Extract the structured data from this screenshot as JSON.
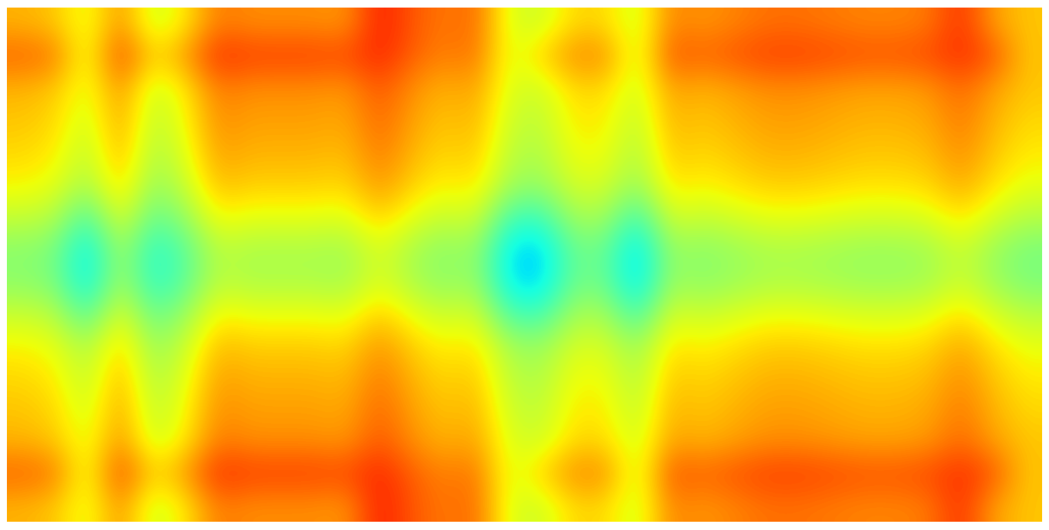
{
  "chart_data": {
    "type": "heatmap",
    "color": "jet",
    "clim": [
      0,
      1
    ],
    "tick_labels": false,
    "cells": [
      [
        0.72,
        0.7,
        0.62,
        0.76,
        0.6,
        0.66,
        0.78,
        0.76,
        0.76,
        0.76,
        0.75,
        0.88,
        0.82,
        0.78,
        0.8,
        0.62,
        0.6,
        0.68,
        0.68,
        0.6,
        0.77,
        0.75,
        0.77,
        0.79,
        0.79,
        0.78,
        0.77,
        0.77,
        0.78,
        0.86,
        0.74,
        0.7
      ],
      [
        0.8,
        0.78,
        0.62,
        0.84,
        0.68,
        0.74,
        0.86,
        0.84,
        0.84,
        0.84,
        0.83,
        0.87,
        0.81,
        0.77,
        0.79,
        0.62,
        0.68,
        0.76,
        0.76,
        0.6,
        0.82,
        0.8,
        0.82,
        0.84,
        0.84,
        0.83,
        0.82,
        0.82,
        0.83,
        0.86,
        0.82,
        0.7
      ],
      [
        0.72,
        0.7,
        0.62,
        0.76,
        0.6,
        0.66,
        0.78,
        0.76,
        0.76,
        0.76,
        0.75,
        0.82,
        0.76,
        0.72,
        0.74,
        0.62,
        0.6,
        0.68,
        0.68,
        0.6,
        0.74,
        0.72,
        0.74,
        0.76,
        0.76,
        0.75,
        0.74,
        0.74,
        0.75,
        0.8,
        0.74,
        0.7
      ],
      [
        0.7,
        0.68,
        0.6,
        0.74,
        0.58,
        0.64,
        0.76,
        0.74,
        0.74,
        0.74,
        0.73,
        0.8,
        0.74,
        0.7,
        0.72,
        0.6,
        0.58,
        0.66,
        0.66,
        0.58,
        0.72,
        0.7,
        0.72,
        0.74,
        0.74,
        0.73,
        0.72,
        0.72,
        0.73,
        0.78,
        0.72,
        0.68
      ],
      [
        0.68,
        0.66,
        0.58,
        0.72,
        0.56,
        0.62,
        0.74,
        0.72,
        0.72,
        0.72,
        0.71,
        0.78,
        0.72,
        0.68,
        0.7,
        0.58,
        0.56,
        0.64,
        0.64,
        0.56,
        0.7,
        0.68,
        0.7,
        0.72,
        0.72,
        0.71,
        0.7,
        0.7,
        0.71,
        0.76,
        0.7,
        0.66
      ],
      [
        0.65,
        0.63,
        0.55,
        0.69,
        0.53,
        0.59,
        0.71,
        0.69,
        0.69,
        0.69,
        0.68,
        0.75,
        0.69,
        0.65,
        0.67,
        0.55,
        0.53,
        0.61,
        0.61,
        0.53,
        0.67,
        0.65,
        0.67,
        0.69,
        0.69,
        0.68,
        0.67,
        0.67,
        0.68,
        0.73,
        0.67,
        0.63
      ],
      [
        0.59,
        0.57,
        0.44,
        0.63,
        0.47,
        0.53,
        0.65,
        0.63,
        0.63,
        0.63,
        0.62,
        0.69,
        0.63,
        0.59,
        0.61,
        0.44,
        0.42,
        0.55,
        0.55,
        0.42,
        0.61,
        0.59,
        0.61,
        0.63,
        0.63,
        0.62,
        0.61,
        0.61,
        0.62,
        0.67,
        0.61,
        0.57
      ],
      [
        0.52,
        0.5,
        0.35,
        0.56,
        0.4,
        0.46,
        0.58,
        0.56,
        0.56,
        0.56,
        0.55,
        0.62,
        0.56,
        0.52,
        0.54,
        0.35,
        0.33,
        0.48,
        0.48,
        0.33,
        0.54,
        0.52,
        0.54,
        0.56,
        0.56,
        0.55,
        0.54,
        0.54,
        0.55,
        0.6,
        0.54,
        0.5
      ],
      [
        0.52,
        0.5,
        0.35,
        0.56,
        0.4,
        0.46,
        0.58,
        0.56,
        0.56,
        0.56,
        0.55,
        0.62,
        0.56,
        0.52,
        0.54,
        0.35,
        0.33,
        0.48,
        0.48,
        0.33,
        0.54,
        0.52,
        0.54,
        0.56,
        0.56,
        0.55,
        0.54,
        0.54,
        0.55,
        0.6,
        0.54,
        0.5
      ],
      [
        0.59,
        0.57,
        0.44,
        0.63,
        0.47,
        0.53,
        0.65,
        0.63,
        0.63,
        0.63,
        0.62,
        0.69,
        0.63,
        0.59,
        0.61,
        0.44,
        0.42,
        0.55,
        0.55,
        0.42,
        0.61,
        0.59,
        0.61,
        0.63,
        0.63,
        0.62,
        0.61,
        0.61,
        0.62,
        0.67,
        0.61,
        0.57
      ],
      [
        0.65,
        0.63,
        0.55,
        0.69,
        0.53,
        0.59,
        0.71,
        0.69,
        0.69,
        0.69,
        0.68,
        0.75,
        0.69,
        0.65,
        0.67,
        0.55,
        0.53,
        0.61,
        0.61,
        0.53,
        0.67,
        0.65,
        0.67,
        0.69,
        0.69,
        0.68,
        0.67,
        0.67,
        0.68,
        0.73,
        0.67,
        0.63
      ],
      [
        0.68,
        0.66,
        0.58,
        0.72,
        0.56,
        0.62,
        0.74,
        0.72,
        0.72,
        0.72,
        0.71,
        0.78,
        0.72,
        0.68,
        0.7,
        0.58,
        0.56,
        0.64,
        0.64,
        0.56,
        0.7,
        0.68,
        0.7,
        0.72,
        0.72,
        0.71,
        0.7,
        0.7,
        0.71,
        0.76,
        0.7,
        0.66
      ],
      [
        0.7,
        0.68,
        0.6,
        0.74,
        0.58,
        0.64,
        0.76,
        0.74,
        0.74,
        0.74,
        0.73,
        0.8,
        0.74,
        0.7,
        0.72,
        0.6,
        0.58,
        0.66,
        0.66,
        0.58,
        0.72,
        0.7,
        0.72,
        0.74,
        0.74,
        0.73,
        0.72,
        0.72,
        0.73,
        0.78,
        0.72,
        0.68
      ],
      [
        0.72,
        0.7,
        0.62,
        0.76,
        0.6,
        0.66,
        0.78,
        0.76,
        0.76,
        0.76,
        0.75,
        0.82,
        0.76,
        0.72,
        0.74,
        0.62,
        0.6,
        0.68,
        0.68,
        0.6,
        0.74,
        0.72,
        0.74,
        0.76,
        0.76,
        0.75,
        0.74,
        0.74,
        0.75,
        0.8,
        0.74,
        0.7
      ],
      [
        0.8,
        0.78,
        0.62,
        0.84,
        0.68,
        0.74,
        0.86,
        0.84,
        0.84,
        0.84,
        0.83,
        0.87,
        0.81,
        0.77,
        0.79,
        0.62,
        0.68,
        0.76,
        0.76,
        0.6,
        0.82,
        0.8,
        0.82,
        0.84,
        0.84,
        0.83,
        0.82,
        0.82,
        0.83,
        0.86,
        0.82,
        0.7
      ],
      [
        0.72,
        0.7,
        0.62,
        0.76,
        0.6,
        0.66,
        0.78,
        0.76,
        0.76,
        0.76,
        0.75,
        0.88,
        0.82,
        0.78,
        0.8,
        0.62,
        0.6,
        0.68,
        0.68,
        0.6,
        0.77,
        0.75,
        0.77,
        0.79,
        0.79,
        0.78,
        0.77,
        0.77,
        0.78,
        0.86,
        0.74,
        0.7
      ]
    ]
  }
}
